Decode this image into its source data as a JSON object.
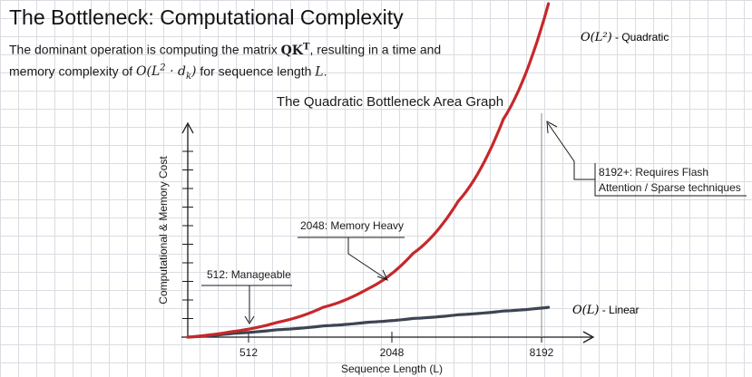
{
  "header": {
    "title": "The Bottleneck: Computational Complexity",
    "subtitle_prefix": "The dominant operation is computing the matrix",
    "subtitle_matrix": "QK",
    "subtitle_matrix_sup": "T",
    "subtitle_mid": ", resulting in a time and memory complexity of",
    "subtitle_complexity": "O(L",
    "subtitle_complexity_sup": "2",
    "subtitle_complexity_mid": " · d",
    "subtitle_complexity_sub": "k",
    "subtitle_complexity_end": ")",
    "subtitle_suffix": "for sequence length",
    "subtitle_var": "L",
    "subtitle_period": "."
  },
  "chart_data": {
    "type": "line",
    "title": "The Quadratic Bottleneck Area Graph",
    "xlabel": "Sequence Length (L)",
    "ylabel": "Computational & Memory Cost",
    "x_ticks": [
      "512",
      "2048",
      "8192"
    ],
    "series": [
      {
        "name": "O(L²) - Quadratic",
        "label_math": "O(L²)",
        "label_text": " - Quadratic",
        "color": "#c6282b",
        "values": [
          0,
          0.03,
          0.08,
          0.16,
          0.26,
          0.45,
          0.73,
          1.17,
          1.79
        ]
      },
      {
        "name": "O(L) - Linear",
        "label_math": "O(L)",
        "label_text": " - Linear",
        "color": "#3d4452",
        "values": [
          0,
          0.02,
          0.04,
          0.06,
          0.08,
          0.1,
          0.12,
          0.14,
          0.16
        ]
      }
    ],
    "x_positions": [
      0,
      0.1,
      0.2,
      0.3,
      0.4,
      0.5,
      0.6,
      0.7,
      0.8
    ],
    "annotations": [
      {
        "text": "512: Manageable",
        "tick": "512"
      },
      {
        "text": "2048: Memory Heavy",
        "tick": "2048"
      },
      {
        "text_line1": "8192+: Requires Flash",
        "text_line2": "Attention / Sparse techniques",
        "tick": "8192"
      }
    ],
    "grid": true,
    "legend": "inline labels at line ends"
  }
}
